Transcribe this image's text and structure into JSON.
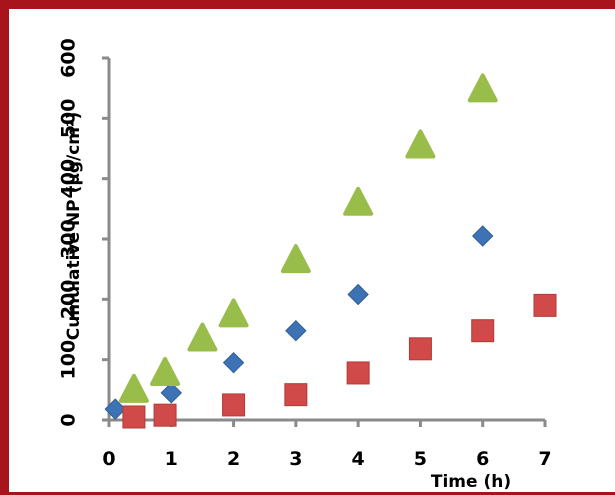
{
  "chart_data": {
    "type": "scatter",
    "title": "",
    "xlabel": "Time (h)",
    "ylabel": "Cumulative NP (μg/cm²)",
    "xlim": [
      0,
      7
    ],
    "ylim": [
      0,
      600
    ],
    "xticks": [
      "0",
      "1",
      "2",
      "3",
      "4",
      "5",
      "6",
      "7"
    ],
    "yticks": [
      "0",
      "100",
      "200",
      "300",
      "400",
      "500",
      "600"
    ],
    "grid": false,
    "legend": "none",
    "series": [
      {
        "marker": "diamond",
        "color": "#3d73b5",
        "points": [
          [
            0.1,
            18
          ],
          [
            1,
            45
          ],
          [
            2,
            95
          ],
          [
            3,
            148
          ],
          [
            4,
            208
          ],
          [
            6,
            305
          ]
        ]
      },
      {
        "marker": "square",
        "color": "#cf4a48",
        "points": [
          [
            0.4,
            5
          ],
          [
            0.9,
            8
          ],
          [
            2,
            25
          ],
          [
            3,
            42
          ],
          [
            4,
            78
          ],
          [
            5,
            118
          ],
          [
            6,
            148
          ],
          [
            7,
            190
          ]
        ]
      },
      {
        "marker": "triangle",
        "color": "#98bd4a",
        "points": [
          [
            0.4,
            50
          ],
          [
            0.9,
            78
          ],
          [
            1.5,
            135
          ],
          [
            2,
            175
          ],
          [
            3,
            265
          ],
          [
            4,
            360
          ],
          [
            5,
            455
          ],
          [
            6,
            548
          ]
        ]
      }
    ]
  }
}
